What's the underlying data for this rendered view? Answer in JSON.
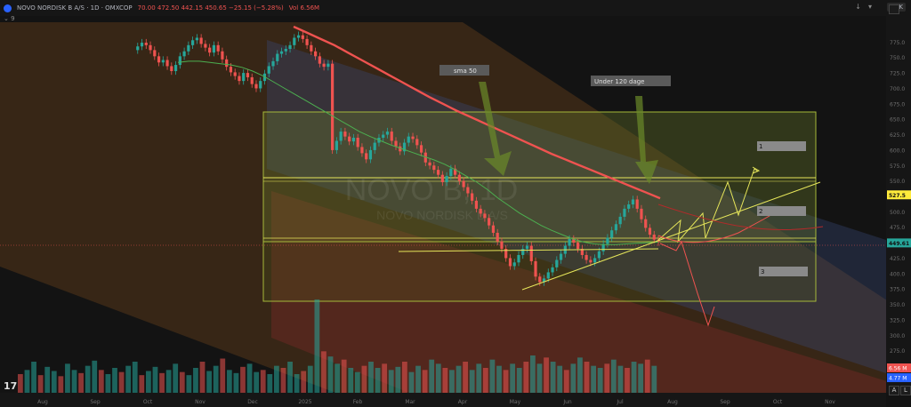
{
  "header": {
    "symbol": "NOVO NORDISK B A/S · 1D · OMXCOP",
    "ohlc": "70.00  472.50  442.15  450.65  −25.15 (−5.28%)",
    "volume": "Vol 6.56M",
    "currency": "DKK",
    "indicator_count": "9"
  },
  "chart_data": {
    "type": "candlestick",
    "symbol": "NOVO B",
    "interval": "1D",
    "watermark_title": "NOVO B, 1D",
    "watermark_subtitle": "NOVO NORDISK B A/S",
    "ylim": [
      250,
      800
    ],
    "y_ticks": [
      775,
      750,
      725,
      700,
      675,
      650,
      625,
      600,
      575,
      550,
      525,
      500,
      475,
      450,
      425,
      400,
      375,
      350,
      325,
      300,
      275
    ],
    "x_labels": [
      "Aug",
      "Sep",
      "Oct",
      "Nov",
      "Dec",
      "2025",
      "Feb",
      "Mar",
      "Apr",
      "May",
      "Jun",
      "Jul",
      "Aug",
      "Sep",
      "Oct",
      "Nov"
    ],
    "price_labels": [
      {
        "value": 527.5,
        "text": "527.5",
        "color": "#ffeb3b"
      },
      {
        "value": 449.61,
        "text": "449.61",
        "color": "#26a69a"
      }
    ],
    "volume_labels": [
      {
        "text": "6.56 M",
        "color": "#ef5350"
      },
      {
        "text": "4.77 M",
        "color": "#2962ff"
      }
    ],
    "price_series": [
      762,
      768,
      774,
      770,
      762,
      752,
      742,
      746,
      736,
      728,
      738,
      752,
      760,
      770,
      778,
      782,
      772,
      766,
      758,
      770,
      760,
      747,
      735,
      726,
      720,
      712,
      725,
      718,
      707,
      700,
      712,
      724,
      736,
      744,
      756,
      760,
      764,
      770,
      782,
      786,
      780,
      770,
      760,
      752,
      740,
      735,
      740,
      600,
      615,
      630,
      622,
      614,
      620,
      605,
      595,
      585,
      600,
      612,
      620,
      625,
      630,
      615,
      606,
      598,
      612,
      622,
      618,
      608,
      596,
      580,
      575,
      568,
      560,
      548,
      558,
      570,
      560,
      550,
      540,
      530,
      518,
      505,
      497,
      490,
      478,
      466,
      452,
      440,
      425,
      412,
      418,
      430,
      440,
      445,
      420,
      395,
      386,
      392,
      402,
      410,
      422,
      432,
      445,
      456,
      450,
      440,
      430,
      422,
      418,
      425,
      436,
      448,
      458,
      470,
      480,
      492,
      505,
      512,
      520,
      505,
      488,
      474,
      463,
      455,
      451
    ],
    "sma50": [
      742,
      744,
      744,
      742,
      740,
      738,
      734,
      728,
      720,
      710,
      700,
      690,
      680,
      670,
      660,
      650,
      640,
      630,
      622,
      615,
      608,
      602,
      596,
      590,
      584,
      577,
      568,
      558,
      548,
      536,
      522,
      510,
      498,
      488,
      478,
      470,
      463,
      456,
      451,
      448,
      447,
      447,
      448,
      449,
      450,
      451
    ],
    "sma120": [
      800,
      790,
      780,
      770,
      758,
      746,
      734,
      722,
      710,
      698,
      686,
      675,
      664,
      654,
      644,
      634,
      624,
      614,
      604,
      594,
      585,
      576,
      567,
      558,
      549,
      540,
      531,
      522
    ],
    "volume": [
      18,
      22,
      30,
      17,
      25,
      21,
      16,
      28,
      22,
      19,
      26,
      31,
      22,
      18,
      24,
      20,
      26,
      30,
      17,
      21,
      25,
      19,
      22,
      28,
      20,
      17,
      24,
      30,
      21,
      26,
      33,
      22,
      19,
      25,
      28,
      20,
      22,
      18,
      26,
      24,
      30,
      18,
      21,
      26,
      90,
      40,
      35,
      28,
      32,
      24,
      20,
      26,
      30,
      24,
      28,
      22,
      25,
      30,
      20,
      26,
      22,
      32,
      28,
      24,
      22,
      26,
      30,
      22,
      28,
      24,
      32,
      26,
      22,
      28,
      24,
      30,
      36,
      28,
      34,
      30,
      26,
      22,
      28,
      34,
      30,
      26,
      24,
      28,
      32,
      26,
      24,
      30,
      28,
      32,
      26
    ],
    "annotations": [
      {
        "text": "sma 50"
      },
      {
        "text": "Under 120 dage"
      },
      {
        "text": "1"
      },
      {
        "text": "2"
      },
      {
        "text": "3"
      }
    ]
  }
}
